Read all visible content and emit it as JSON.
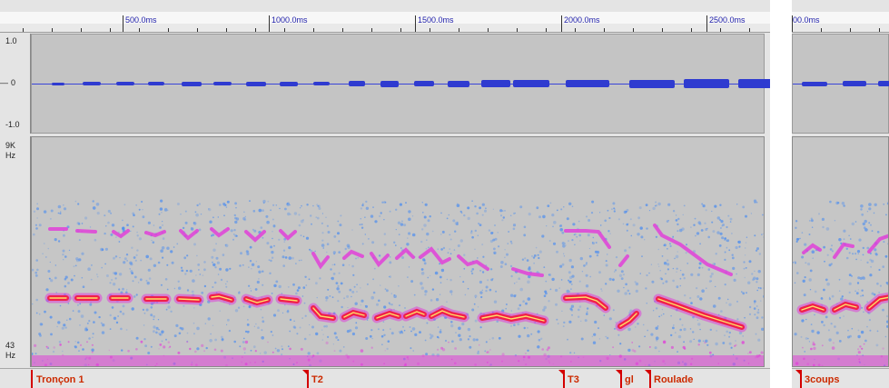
{
  "ruler": {
    "tick_labels": [
      "500.0ms",
      "1000.0ms",
      "1500.0ms",
      "2000.0ms",
      "2500.0ms"
    ],
    "tick_label_b": "00.0ms"
  },
  "waveform": {
    "y_labels": [
      "1.0",
      "0",
      "-1.0"
    ],
    "color": "#2f3bd0",
    "background": "#c4c4c4"
  },
  "spectrogram": {
    "y_top_label": "9K",
    "y_top_unit": "Hz",
    "y_bottom_label": "43",
    "y_bottom_unit": "Hz"
  },
  "labels": [
    "Tronçon 1",
    "T2",
    "T3",
    "gl",
    "Roulade"
  ],
  "labels_b": [
    "3coups"
  ],
  "colors": {
    "label_text": "#cc2a00",
    "label_flag": "#d40000",
    "spectro_bg": "#c6c6c6",
    "spectro_blue": "#4a8cf0",
    "spectro_pink": "#e040d8",
    "spectro_red": "#f0204a",
    "spectro_yellow": "#ffe066"
  }
}
